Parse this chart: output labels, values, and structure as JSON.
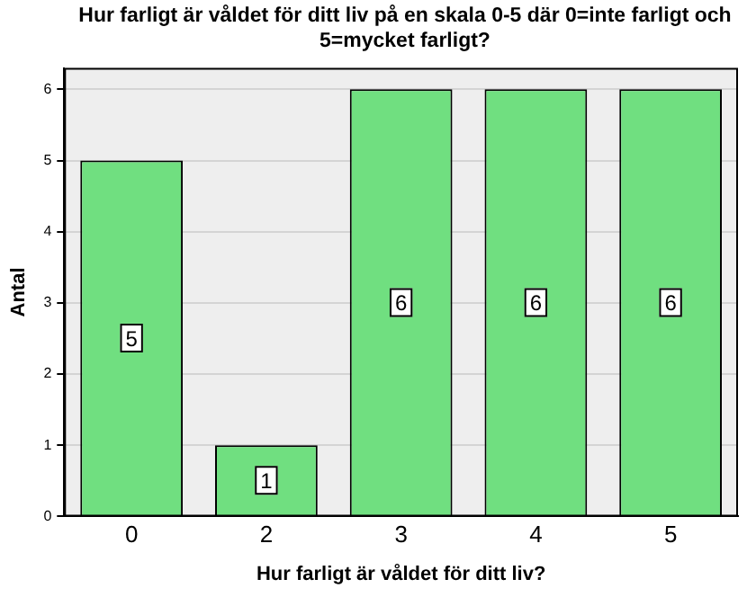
{
  "chart_data": {
    "type": "bar",
    "title": "Hur farligt är våldet för ditt liv på en skala 0-5 där 0=inte farligt och 5=mycket farligt?",
    "xlabel": "Hur farligt är våldet för ditt liv?",
    "ylabel": "Antal",
    "categories": [
      "0",
      "2",
      "3",
      "4",
      "5"
    ],
    "values": [
      5,
      1,
      6,
      6,
      6
    ],
    "color": "#70df80",
    "ylim": [
      0,
      6.3
    ],
    "yticks": [
      0,
      1,
      2,
      3,
      4,
      5,
      6
    ],
    "grid": "y",
    "data_labels": true
  }
}
